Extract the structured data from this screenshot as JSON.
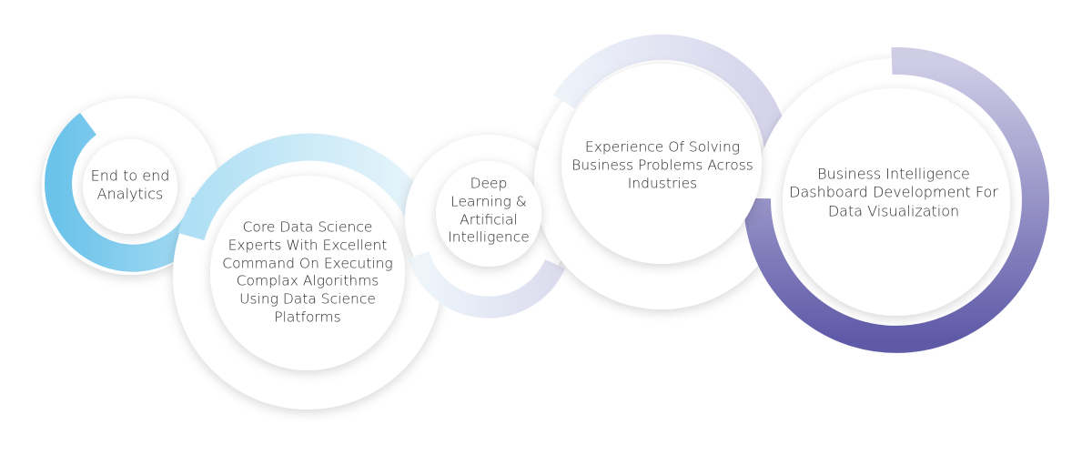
{
  "stages": [
    {
      "id": "stage-1",
      "lines": [
        "End to end",
        "Analytics"
      ]
    },
    {
      "id": "stage-2",
      "lines": [
        "Core Data Science",
        "Experts With Excellent",
        "Command On Executing",
        "Complax Algorithms",
        "Using Data Science",
        "Platforms"
      ]
    },
    {
      "id": "stage-3",
      "lines": [
        "Deep",
        "Learning &",
        "Artificial",
        "Intelligence"
      ]
    },
    {
      "id": "stage-4",
      "lines": [
        "Experience Of Solving",
        "Business Problems Across",
        "Industries"
      ]
    },
    {
      "id": "stage-5",
      "lines": [
        "Business Intelligence",
        "Dashboard Development For",
        "Data Visualization"
      ]
    }
  ],
  "colors": {
    "cyan": "#7ccbec",
    "light_blue": "#bfe6f6",
    "pale": "#eef5fb",
    "lavender": "#d7d4ea",
    "purple": "#6b66b0",
    "text": "#2a2a2a"
  }
}
